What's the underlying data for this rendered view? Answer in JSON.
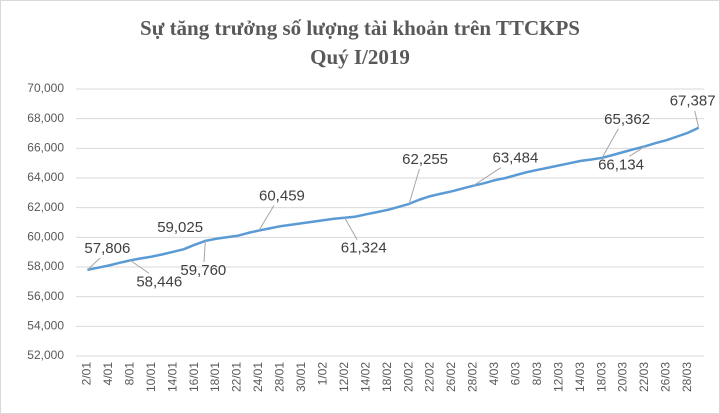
{
  "chart_data": {
    "type": "line",
    "title": [
      "Sự tăng trưởng số lượng tài khoản trên TTCKPS",
      "Quý I/2019"
    ],
    "categories": [
      "2/01",
      null,
      "4/01",
      null,
      "8/01",
      null,
      "10/01",
      null,
      "14/01",
      null,
      "16/01",
      null,
      "18/01",
      null,
      "22/01",
      null,
      "24/01",
      null,
      "28/01",
      null,
      "30/01",
      null,
      "1/02",
      null,
      "12/02",
      null,
      "14/02",
      null,
      "18/02",
      null,
      "20/02",
      null,
      "22/02",
      null,
      "26/02",
      null,
      "28/02",
      null,
      "4/03",
      null,
      "6/03",
      null,
      "8/03",
      null,
      "12/03",
      null,
      "14/03",
      null,
      "18/03",
      null,
      "20/03",
      null,
      "22/03",
      null,
      "26/03",
      null,
      "28/03",
      null
    ],
    "values": [
      57806,
      57950,
      58100,
      58280,
      58446,
      58580,
      58700,
      58850,
      59025,
      59200,
      59500,
      59760,
      59900,
      60000,
      60100,
      60300,
      60459,
      60600,
      60750,
      60850,
      60950,
      61050,
      61150,
      61250,
      61324,
      61400,
      61550,
      61700,
      61850,
      62050,
      62255,
      62550,
      62780,
      62950,
      63100,
      63300,
      63484,
      63650,
      63850,
      64000,
      64200,
      64400,
      64550,
      64700,
      64850,
      65000,
      65150,
      65250,
      65362,
      65550,
      65750,
      65950,
      66134,
      66350,
      66550,
      66800,
      67050,
      67387
    ],
    "value_labels": [
      "57,806",
      null,
      null,
      null,
      "58,446",
      null,
      null,
      null,
      "59,025",
      null,
      null,
      "59,760",
      null,
      null,
      null,
      null,
      "60,459",
      null,
      null,
      null,
      null,
      null,
      null,
      null,
      "61,324",
      null,
      null,
      null,
      null,
      null,
      "62,255",
      null,
      null,
      null,
      null,
      null,
      "63,484",
      null,
      null,
      null,
      null,
      null,
      null,
      null,
      null,
      null,
      null,
      null,
      "65,362",
      null,
      null,
      null,
      "66,134",
      null,
      null,
      null,
      null,
      "67,387"
    ],
    "color": "#5b9bd5",
    "ylim": [
      52000,
      70000
    ],
    "yticks": [
      {
        "value": 52000,
        "label": "52,000"
      },
      {
        "value": 54000,
        "label": "54,000"
      },
      {
        "value": 56000,
        "label": "56,000"
      },
      {
        "value": 58000,
        "label": "58,000"
      },
      {
        "value": 60000,
        "label": "60,000"
      },
      {
        "value": 62000,
        "label": "62,000"
      },
      {
        "value": 64000,
        "label": "64,000"
      },
      {
        "value": 66000,
        "label": "66,000"
      },
      {
        "value": 68000,
        "label": "68,000"
      },
      {
        "value": 70000,
        "label": "70,000"
      }
    ],
    "grid": true
  }
}
